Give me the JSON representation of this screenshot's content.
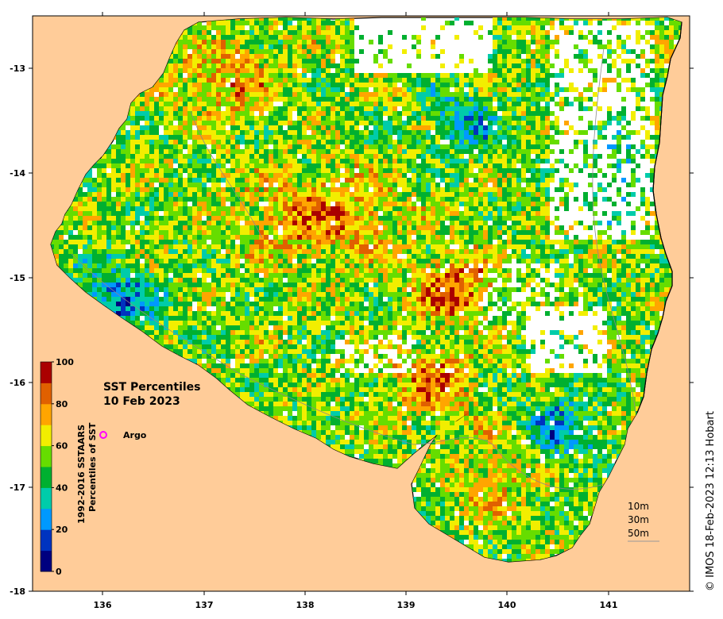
{
  "title": {
    "line1": "SST Percentiles",
    "line2": "10 Feb 2023"
  },
  "colorbar": {
    "label_line1": "1992-2016 SSTAARS",
    "label_line2": "Percentiles of SST",
    "ticks": [
      "0",
      "20",
      "40",
      "60",
      "80",
      "100"
    ],
    "colors": [
      "#00007f",
      "#0033bf",
      "#0099ff",
      "#00ccaa",
      "#00b030",
      "#66dd00",
      "#f2ee00",
      "#ffa500",
      "#e06000",
      "#aa0000"
    ]
  },
  "legend": {
    "argo_label": "Argo",
    "argo_color": "#ff00ff"
  },
  "depth_contours": [
    "10m",
    "30m",
    "50m"
  ],
  "axes": {
    "x_ticks": [
      "136",
      "137",
      "138",
      "139",
      "140",
      "141"
    ],
    "y_ticks": [
      "-13",
      "-14",
      "-15",
      "-16",
      "-17",
      "-18"
    ]
  },
  "credit": "© IMOS 18-Feb-2023 12:13 Hobart",
  "colors": {
    "land": "#ffcc99",
    "no_data": "#ffffff"
  }
}
